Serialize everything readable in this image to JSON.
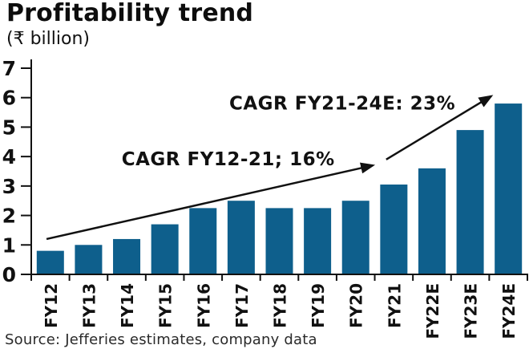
{
  "header": {
    "title": "Profitability trend",
    "unit_label": "(₹ billion)"
  },
  "footer": {
    "source": "Source: Jefferies estimates, company data"
  },
  "chart_data": {
    "type": "bar",
    "title": "Profitability trend",
    "ylabel": "₹ billion",
    "xlabel": "",
    "categories": [
      "FY12",
      "FY13",
      "FY14",
      "FY15",
      "FY16",
      "FY17",
      "FY18",
      "FY19",
      "FY20",
      "FY21",
      "FY22E",
      "FY23E",
      "FY24E"
    ],
    "values": [
      0.8,
      1.0,
      1.2,
      1.7,
      2.25,
      2.5,
      2.25,
      2.25,
      2.5,
      3.05,
      3.6,
      4.9,
      5.8
    ],
    "ylim": [
      0,
      7
    ],
    "ytick_interval": 1,
    "grid": false,
    "legend": "none",
    "bar_color": "#0E5F8C",
    "axis_color": "#111111",
    "annotations": [
      {
        "id": "cagr-fy12-21",
        "text": "CAGR FY12-21; 16%",
        "x_index": 4.66,
        "y_value": 3.92,
        "arrow": {
          "from": {
            "x_index": -0.1,
            "y_value": 1.2
          },
          "to": {
            "x_index": 8.45,
            "y_value": 3.7
          }
        }
      },
      {
        "id": "cagr-fy21-24e",
        "text": "CAGR FY21-24E: 23%",
        "x_index": 7.65,
        "y_value": 5.82,
        "arrow": {
          "from": {
            "x_index": 8.8,
            "y_value": 3.9
          },
          "to": {
            "x_index": 11.55,
            "y_value": 6.05
          }
        }
      }
    ]
  }
}
